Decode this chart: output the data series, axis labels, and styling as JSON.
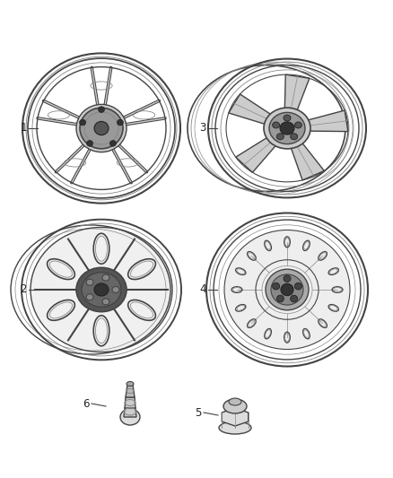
{
  "background_color": "#ffffff",
  "line_color": "#444444",
  "line_color2": "#888888",
  "dark": "#222222",
  "mid_gray": "#999999",
  "light_gray": "#cccccc",
  "label_fontsize": 8.5,
  "fig_width": 4.38,
  "fig_height": 5.33,
  "dpi": 100
}
